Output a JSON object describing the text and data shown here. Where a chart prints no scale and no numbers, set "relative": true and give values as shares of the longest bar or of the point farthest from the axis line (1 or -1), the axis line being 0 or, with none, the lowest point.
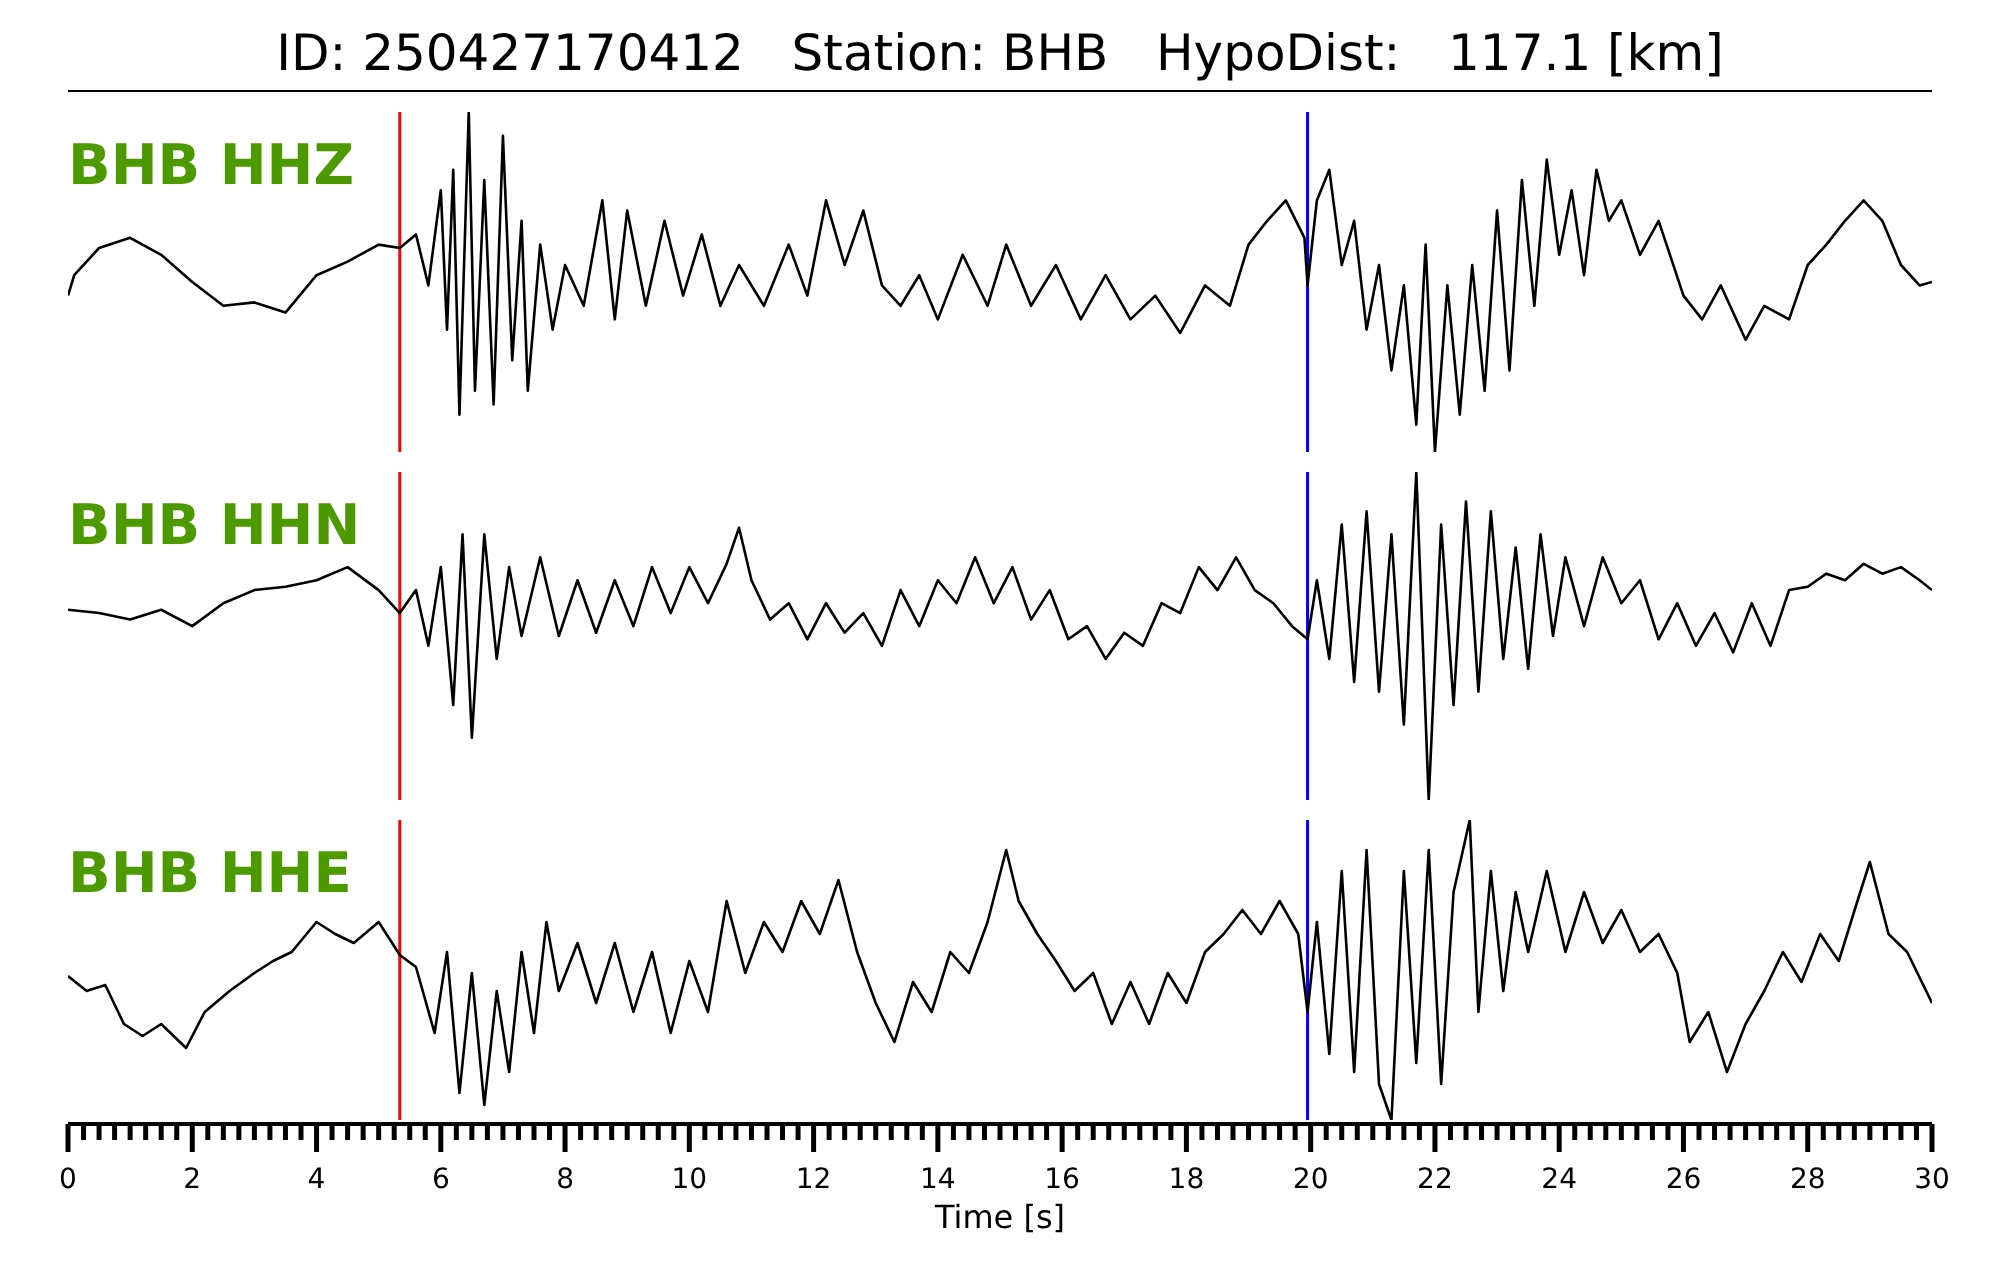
{
  "chart_data": [
    {
      "type": "line",
      "title": "ID: 250427170412   Station: BHB   HypoDist:   117.1 [km]",
      "relative": true,
      "xlim": [
        0,
        30
      ],
      "tick_labels": false,
      "ref_lines": [
        {
          "axis": "x",
          "value": 5.34,
          "color": "#ff0000"
        },
        {
          "axis": "x",
          "value": 19.95,
          "color": "#0000ff"
        }
      ],
      "series": [
        {
          "name": "BHB HHZ",
          "color": "#000000",
          "x": [
            0,
            0.1,
            0.5,
            1,
            1.5,
            2,
            2.5,
            3,
            3.5,
            4,
            4.5,
            5,
            5.34,
            5.6,
            5.8,
            6.0,
            6.1,
            6.2,
            6.3,
            6.45,
            6.55,
            6.7,
            6.85,
            7.0,
            7.15,
            7.3,
            7.4,
            7.6,
            7.8,
            8.0,
            8.3,
            8.6,
            8.8,
            9.0,
            9.3,
            9.6,
            9.9,
            10.2,
            10.5,
            10.8,
            11.2,
            11.6,
            11.9,
            12.2,
            12.5,
            12.8,
            13.1,
            13.4,
            13.7,
            14.0,
            14.4,
            14.8,
            15.1,
            15.5,
            15.9,
            16.3,
            16.7,
            17.1,
            17.5,
            17.9,
            18.3,
            18.7,
            19.0,
            19.3,
            19.6,
            19.9,
            19.95,
            20.1,
            20.3,
            20.5,
            20.7,
            20.9,
            21.1,
            21.3,
            21.5,
            21.7,
            21.85,
            22.0,
            22.2,
            22.4,
            22.6,
            22.8,
            23.0,
            23.2,
            23.4,
            23.6,
            23.8,
            24.0,
            24.2,
            24.4,
            24.6,
            24.8,
            25.0,
            25.3,
            25.6,
            26.0,
            26.3,
            26.6,
            27.0,
            27.3,
            27.7,
            28.0,
            28.3,
            28.6,
            28.9,
            29.2,
            29.5,
            29.8,
            30.0
          ],
          "values": [
            0.46,
            0.52,
            0.6,
            0.63,
            0.58,
            0.5,
            0.43,
            0.44,
            0.41,
            0.52,
            0.56,
            0.61,
            0.6,
            0.64,
            0.49,
            0.77,
            0.36,
            0.83,
            0.11,
            1,
            0.18,
            0.8,
            0.14,
            0.93,
            0.27,
            0.68,
            0.18,
            0.61,
            0.36,
            0.55,
            0.43,
            0.74,
            0.39,
            0.71,
            0.43,
            0.68,
            0.46,
            0.64,
            0.43,
            0.55,
            0.43,
            0.61,
            0.46,
            0.74,
            0.55,
            0.71,
            0.49,
            0.43,
            0.52,
            0.39,
            0.58,
            0.43,
            0.61,
            0.43,
            0.55,
            0.39,
            0.52,
            0.39,
            0.46,
            0.35,
            0.49,
            0.43,
            0.61,
            0.68,
            0.74,
            0.63,
            0.49,
            0.74,
            0.83,
            0.55,
            0.68,
            0.36,
            0.55,
            0.24,
            0.49,
            0.08,
            0.61,
            0,
            0.49,
            0.11,
            0.55,
            0.18,
            0.71,
            0.24,
            0.8,
            0.43,
            0.86,
            0.58,
            0.77,
            0.52,
            0.83,
            0.68,
            0.74,
            0.58,
            0.68,
            0.46,
            0.39,
            0.49,
            0.33,
            0.43,
            0.39,
            0.55,
            0.61,
            0.68,
            0.74,
            0.68,
            0.55,
            0.49,
            0.5
          ]
        }
      ]
    },
    {
      "type": "line",
      "relative": true,
      "xlim": [
        0,
        30
      ],
      "tick_labels": false,
      "ref_lines": [
        {
          "axis": "x",
          "value": 5.34,
          "color": "#ff0000"
        },
        {
          "axis": "x",
          "value": 19.95,
          "color": "#0000ff"
        }
      ],
      "series": [
        {
          "name": "BHB HHN",
          "color": "#000000",
          "x": [
            0,
            0.5,
            1,
            1.5,
            2,
            2.5,
            3,
            3.5,
            4,
            4.5,
            5,
            5.34,
            5.6,
            5.8,
            6.0,
            6.2,
            6.35,
            6.5,
            6.7,
            6.9,
            7.1,
            7.3,
            7.6,
            7.9,
            8.2,
            8.5,
            8.8,
            9.1,
            9.4,
            9.7,
            10.0,
            10.3,
            10.6,
            10.8,
            11.0,
            11.3,
            11.6,
            11.9,
            12.2,
            12.5,
            12.8,
            13.1,
            13.4,
            13.7,
            14.0,
            14.3,
            14.6,
            14.9,
            15.2,
            15.5,
            15.8,
            16.1,
            16.4,
            16.7,
            17.0,
            17.3,
            17.6,
            17.9,
            18.2,
            18.5,
            18.8,
            19.1,
            19.4,
            19.7,
            19.95,
            20.1,
            20.3,
            20.5,
            20.7,
            20.9,
            21.1,
            21.3,
            21.5,
            21.7,
            21.9,
            22.1,
            22.3,
            22.5,
            22.7,
            22.9,
            23.1,
            23.3,
            23.5,
            23.7,
            23.9,
            24.1,
            24.4,
            24.7,
            25.0,
            25.3,
            25.6,
            25.9,
            26.2,
            26.5,
            26.8,
            27.1,
            27.4,
            27.7,
            28.0,
            28.3,
            28.6,
            28.9,
            29.2,
            29.5,
            29.8,
            30
          ],
          "values": [
            0.58,
            0.57,
            0.55,
            0.58,
            0.53,
            0.6,
            0.64,
            0.65,
            0.67,
            0.71,
            0.64,
            0.57,
            0.64,
            0.47,
            0.71,
            0.29,
            0.81,
            0.19,
            0.81,
            0.43,
            0.71,
            0.5,
            0.74,
            0.5,
            0.67,
            0.51,
            0.67,
            0.53,
            0.71,
            0.57,
            0.71,
            0.6,
            0.72,
            0.83,
            0.67,
            0.55,
            0.6,
            0.49,
            0.6,
            0.51,
            0.57,
            0.47,
            0.64,
            0.53,
            0.67,
            0.6,
            0.74,
            0.6,
            0.71,
            0.55,
            0.64,
            0.49,
            0.53,
            0.43,
            0.51,
            0.47,
            0.6,
            0.57,
            0.71,
            0.64,
            0.74,
            0.64,
            0.6,
            0.53,
            0.49,
            0.67,
            0.43,
            0.84,
            0.36,
            0.88,
            0.33,
            0.81,
            0.23,
            1,
            0,
            0.84,
            0.29,
            0.91,
            0.33,
            0.88,
            0.43,
            0.77,
            0.4,
            0.81,
            0.5,
            0.74,
            0.53,
            0.74,
            0.6,
            0.67,
            0.49,
            0.6,
            0.47,
            0.57,
            0.45,
            0.6,
            0.47,
            0.64,
            0.65,
            0.69,
            0.67,
            0.72,
            0.69,
            0.71,
            0.67,
            0.64
          ]
        }
      ]
    },
    {
      "type": "line",
      "relative": true,
      "xlim": [
        0,
        30
      ],
      "tick_labels": "x",
      "xlabel": "Time [s]",
      "xticks": [
        0,
        {
          "value": 0.25,
          "label": null
        },
        {
          "value": 0.5,
          "label": null
        },
        {
          "value": 0.75,
          "label": null
        },
        {
          "value": 1,
          "label": null
        },
        {
          "value": 1.25,
          "label": null
        },
        {
          "value": 1.5,
          "label": null
        },
        {
          "value": 1.75,
          "label": null
        },
        2,
        {
          "value": 2.25,
          "label": null
        },
        {
          "value": 2.5,
          "label": null
        },
        {
          "value": 2.75,
          "label": null
        },
        {
          "value": 3,
          "label": null
        },
        {
          "value": 3.25,
          "label": null
        },
        {
          "value": 3.5,
          "label": null
        },
        {
          "value": 3.75,
          "label": null
        },
        4,
        {
          "value": 4.25,
          "label": null
        },
        {
          "value": 4.5,
          "label": null
        },
        {
          "value": 4.75,
          "label": null
        },
        {
          "value": 5,
          "label": null
        },
        {
          "value": 5.25,
          "label": null
        },
        {
          "value": 5.5,
          "label": null
        },
        {
          "value": 5.75,
          "label": null
        },
        6,
        {
          "value": 6.25,
          "label": null
        },
        {
          "value": 6.5,
          "label": null
        },
        {
          "value": 6.75,
          "label": null
        },
        {
          "value": 7,
          "label": null
        },
        {
          "value": 7.25,
          "label": null
        },
        {
          "value": 7.5,
          "label": null
        },
        {
          "value": 7.75,
          "label": null
        },
        8,
        {
          "value": 8.25,
          "label": null
        },
        {
          "value": 8.5,
          "label": null
        },
        {
          "value": 8.75,
          "label": null
        },
        {
          "value": 9,
          "label": null
        },
        {
          "value": 9.25,
          "label": null
        },
        {
          "value": 9.5,
          "label": null
        },
        {
          "value": 9.75,
          "label": null
        },
        10,
        {
          "value": 10.25,
          "label": null
        },
        {
          "value": 10.5,
          "label": null
        },
        {
          "value": 10.75,
          "label": null
        },
        {
          "value": 11,
          "label": null
        },
        {
          "value": 11.25,
          "label": null
        },
        {
          "value": 11.5,
          "label": null
        },
        {
          "value": 11.75,
          "label": null
        },
        12,
        {
          "value": 12.25,
          "label": null
        },
        {
          "value": 12.5,
          "label": null
        },
        {
          "value": 12.75,
          "label": null
        },
        {
          "value": 13,
          "label": null
        },
        {
          "value": 13.25,
          "label": null
        },
        {
          "value": 13.5,
          "label": null
        },
        {
          "value": 13.75,
          "label": null
        },
        14,
        {
          "value": 14.25,
          "label": null
        },
        {
          "value": 14.5,
          "label": null
        },
        {
          "value": 14.75,
          "label": null
        },
        {
          "value": 15,
          "label": null
        },
        {
          "value": 15.25,
          "label": null
        },
        {
          "value": 15.5,
          "label": null
        },
        {
          "value": 15.75,
          "label": null
        },
        16,
        {
          "value": 16.25,
          "label": null
        },
        {
          "value": 16.5,
          "label": null
        },
        {
          "value": 16.75,
          "label": null
        },
        {
          "value": 17,
          "label": null
        },
        {
          "value": 17.25,
          "label": null
        },
        {
          "value": 17.5,
          "label": null
        },
        {
          "value": 17.75,
          "label": null
        },
        18,
        {
          "value": 18.25,
          "label": null
        },
        {
          "value": 18.5,
          "label": null
        },
        {
          "value": 18.75,
          "label": null
        },
        {
          "value": 19,
          "label": null
        },
        {
          "value": 19.25,
          "label": null
        },
        {
          "value": 19.5,
          "label": null
        },
        {
          "value": 19.75,
          "label": null
        },
        20,
        {
          "value": 20.25,
          "label": null
        },
        {
          "value": 20.5,
          "label": null
        },
        {
          "value": 20.75,
          "label": null
        },
        {
          "value": 21,
          "label": null
        },
        {
          "value": 21.25,
          "label": null
        },
        {
          "value": 21.5,
          "label": null
        },
        {
          "value": 21.75,
          "label": null
        },
        22,
        {
          "value": 22.25,
          "label": null
        },
        {
          "value": 22.5,
          "label": null
        },
        {
          "value": 22.75,
          "label": null
        },
        {
          "value": 23,
          "label": null
        },
        {
          "value": 23.25,
          "label": null
        },
        {
          "value": 23.5,
          "label": null
        },
        {
          "value": 23.75,
          "label": null
        },
        24,
        {
          "value": 24.25,
          "label": null
        },
        {
          "value": 24.5,
          "label": null
        },
        {
          "value": 24.75,
          "label": null
        },
        {
          "value": 25,
          "label": null
        },
        {
          "value": 25.25,
          "label": null
        },
        {
          "value": 25.5,
          "label": null
        },
        {
          "value": 25.75,
          "label": null
        },
        26,
        {
          "value": 26.25,
          "label": null
        },
        {
          "value": 26.5,
          "label": null
        },
        {
          "value": 26.75,
          "label": null
        },
        {
          "value": 27,
          "label": null
        },
        {
          "value": 27.25,
          "label": null
        },
        {
          "value": 27.5,
          "label": null
        },
        {
          "value": 27.75,
          "label": null
        },
        28,
        {
          "value": 28.25,
          "label": null
        },
        {
          "value": 28.5,
          "label": null
        },
        {
          "value": 28.75,
          "label": null
        },
        {
          "value": 29,
          "label": null
        },
        {
          "value": 29.25,
          "label": null
        },
        {
          "value": 29.5,
          "label": null
        },
        {
          "value": 29.75,
          "label": null
        },
        30
      ],
      "ref_lines": [
        {
          "axis": "x",
          "value": 5.34,
          "color": "#ff0000"
        },
        {
          "axis": "x",
          "value": 19.95,
          "color": "#0000ff"
        }
      ],
      "series": [
        {
          "name": "BHB HHE",
          "color": "#000000",
          "x": [
            0,
            0.3,
            0.6,
            0.9,
            1.2,
            1.5,
            1.9,
            2.2,
            2.6,
            3,
            3.3,
            3.6,
            4.0,
            4.3,
            4.6,
            5.0,
            5.34,
            5.6,
            5.9,
            6.1,
            6.3,
            6.5,
            6.7,
            6.9,
            7.1,
            7.3,
            7.5,
            7.7,
            7.9,
            8.2,
            8.5,
            8.8,
            9.1,
            9.4,
            9.7,
            10.0,
            10.3,
            10.6,
            10.9,
            11.2,
            11.5,
            11.8,
            12.1,
            12.4,
            12.7,
            13.0,
            13.3,
            13.6,
            13.9,
            14.2,
            14.5,
            14.8,
            15.1,
            15.3,
            15.6,
            15.9,
            16.2,
            16.5,
            16.8,
            17.1,
            17.4,
            17.7,
            18.0,
            18.3,
            18.6,
            18.9,
            19.2,
            19.5,
            19.8,
            19.95,
            20.1,
            20.3,
            20.5,
            20.7,
            20.9,
            21.1,
            21.3,
            21.5,
            21.7,
            21.9,
            22.1,
            22.3,
            22.56,
            22.7,
            22.9,
            23.1,
            23.3,
            23.5,
            23.8,
            24.1,
            24.4,
            24.7,
            25.0,
            25.3,
            25.6,
            25.9,
            26.1,
            26.4,
            26.7,
            27.0,
            27.3,
            27.6,
            27.9,
            28.2,
            28.5,
            28.8,
            29.0,
            29.3,
            29.6,
            30
          ],
          "values": [
            0.48,
            0.43,
            0.45,
            0.32,
            0.28,
            0.32,
            0.24,
            0.36,
            0.43,
            0.49,
            0.53,
            0.56,
            0.66,
            0.62,
            0.59,
            0.66,
            0.55,
            0.51,
            0.29,
            0.56,
            0.09,
            0.49,
            0.05,
            0.43,
            0.16,
            0.56,
            0.29,
            0.66,
            0.43,
            0.59,
            0.39,
            0.59,
            0.36,
            0.56,
            0.29,
            0.53,
            0.36,
            0.73,
            0.49,
            0.66,
            0.56,
            0.73,
            0.62,
            0.8,
            0.56,
            0.39,
            0.26,
            0.46,
            0.36,
            0.56,
            0.49,
            0.66,
            0.9,
            0.73,
            0.62,
            0.53,
            0.43,
            0.49,
            0.32,
            0.46,
            0.32,
            0.49,
            0.39,
            0.56,
            0.62,
            0.7,
            0.62,
            0.73,
            0.62,
            0.36,
            0.66,
            0.22,
            0.83,
            0.16,
            0.9,
            0.12,
            0,
            0.83,
            0.19,
            0.9,
            0.12,
            0.76,
            1,
            0.36,
            0.83,
            0.43,
            0.76,
            0.56,
            0.83,
            0.56,
            0.76,
            0.59,
            0.7,
            0.56,
            0.62,
            0.49,
            0.26,
            0.36,
            0.16,
            0.32,
            0.43,
            0.56,
            0.46,
            0.62,
            0.53,
            0.73,
            0.86,
            0.62,
            0.56,
            0.39
          ]
        }
      ]
    }
  ]
}
